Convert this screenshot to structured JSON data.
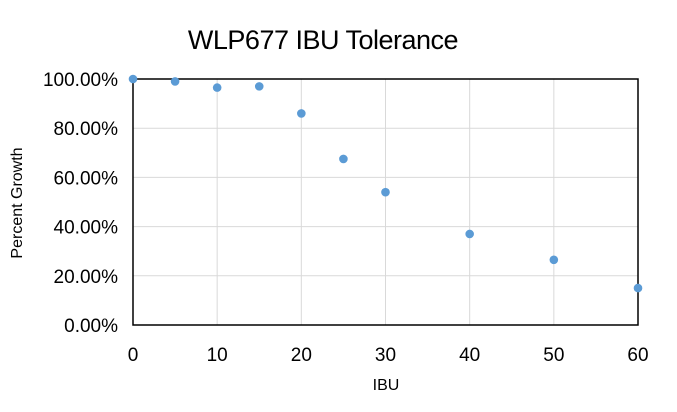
{
  "chart_data": {
    "type": "scatter",
    "title": "WLP677 IBU Tolerance",
    "xlabel": "IBU",
    "ylabel": "Percent Growth",
    "xlim": [
      0,
      60
    ],
    "ylim": [
      0,
      1
    ],
    "x_ticks": [
      0,
      10,
      20,
      30,
      40,
      50,
      60
    ],
    "x_tick_labels": [
      "0",
      "10",
      "20",
      "30",
      "40",
      "50",
      "60"
    ],
    "y_ticks": [
      0,
      0.2,
      0.4,
      0.6,
      0.8,
      1.0
    ],
    "y_tick_labels": [
      "0.00%",
      "20.00%",
      "40.00%",
      "60.00%",
      "80.00%",
      "100.00%"
    ],
    "grid": true,
    "legend": "none",
    "series": [
      {
        "color": "#5b9bd5",
        "points": [
          {
            "x": 0,
            "y": 1.0
          },
          {
            "x": 5,
            "y": 0.99
          },
          {
            "x": 10,
            "y": 0.965
          },
          {
            "x": 15,
            "y": 0.97
          },
          {
            "x": 20,
            "y": 0.86
          },
          {
            "x": 25,
            "y": 0.675
          },
          {
            "x": 30,
            "y": 0.54
          },
          {
            "x": 40,
            "y": 0.37
          },
          {
            "x": 50,
            "y": 0.265
          },
          {
            "x": 60,
            "y": 0.15
          }
        ]
      }
    ],
    "colors": {
      "grid": "#d9d9d9",
      "axis": "#000000",
      "marker": "#5b9bd5"
    }
  }
}
